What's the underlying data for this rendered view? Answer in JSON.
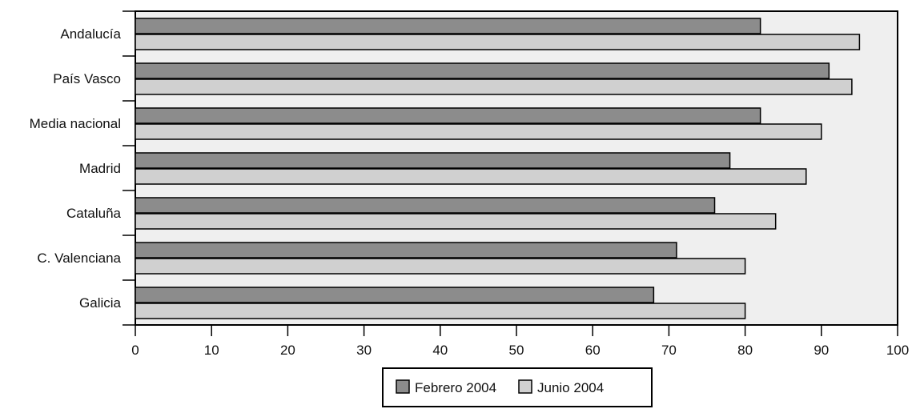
{
  "chart_data": {
    "type": "bar",
    "orientation": "horizontal",
    "categories": [
      "Andalucía",
      "País Vasco",
      "Media nacional",
      "Madrid",
      "Cataluña",
      "C. Valenciana",
      "Galicia"
    ],
    "series": [
      {
        "name": "Febrero 2004",
        "color": "#8c8c8c",
        "values": [
          82,
          91,
          82,
          78,
          76,
          71,
          68
        ]
      },
      {
        "name": "Junio 2004",
        "color": "#d0d0d0",
        "values": [
          95,
          94,
          90,
          88,
          84,
          80,
          80
        ]
      }
    ],
    "xlim": [
      0,
      100
    ],
    "xticks": [
      0,
      10,
      20,
      30,
      40,
      50,
      60,
      70,
      80,
      90,
      100
    ],
    "grid": false,
    "plot_background": "#efefef",
    "legend_position": "bottom-center"
  }
}
